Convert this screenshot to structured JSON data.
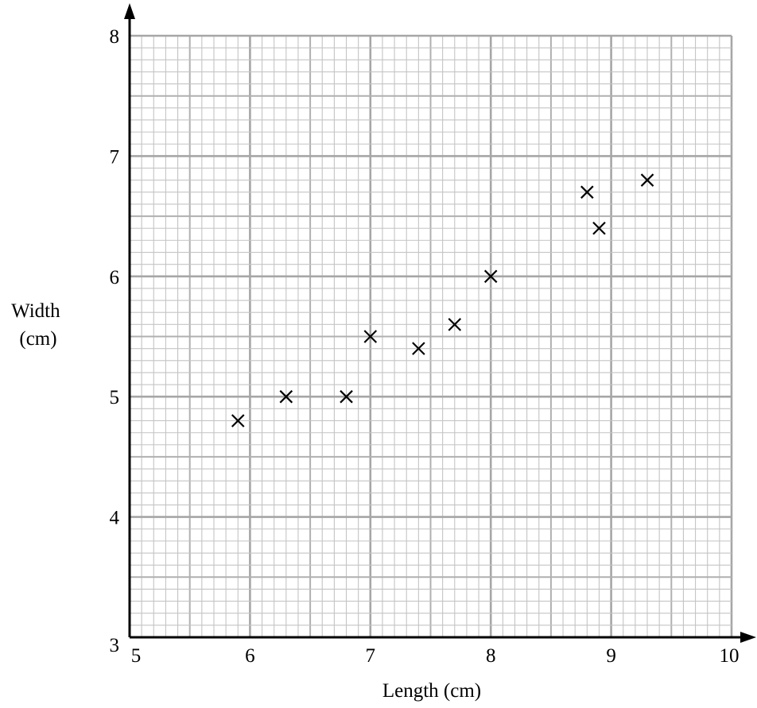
{
  "chart_data": {
    "type": "scatter",
    "title": "",
    "xlabel": "Length (cm)",
    "ylabel_lines": [
      "Width",
      "(cm)"
    ],
    "xlim": [
      5,
      10
    ],
    "ylim": [
      3,
      8
    ],
    "xticks": [
      "5",
      "6",
      "7",
      "8",
      "9",
      "10"
    ],
    "yticks": [
      "3",
      "4",
      "5",
      "6",
      "7",
      "8"
    ],
    "grid": true,
    "minor_per_major": 10,
    "marker": "x",
    "points": [
      {
        "x": 5.9,
        "y": 4.8
      },
      {
        "x": 6.3,
        "y": 5.0
      },
      {
        "x": 6.8,
        "y": 5.0
      },
      {
        "x": 7.0,
        "y": 5.5
      },
      {
        "x": 7.4,
        "y": 5.4
      },
      {
        "x": 7.7,
        "y": 5.6
      },
      {
        "x": 8.0,
        "y": 6.0
      },
      {
        "x": 8.8,
        "y": 6.7
      },
      {
        "x": 8.9,
        "y": 6.4
      },
      {
        "x": 9.3,
        "y": 6.8
      }
    ],
    "colors": {
      "minor_grid": "#c4c4c4",
      "mid_grid": "#b0b0b0",
      "major_grid": "#a6a6a6",
      "axis": "#000000",
      "marker": "#000000"
    }
  }
}
